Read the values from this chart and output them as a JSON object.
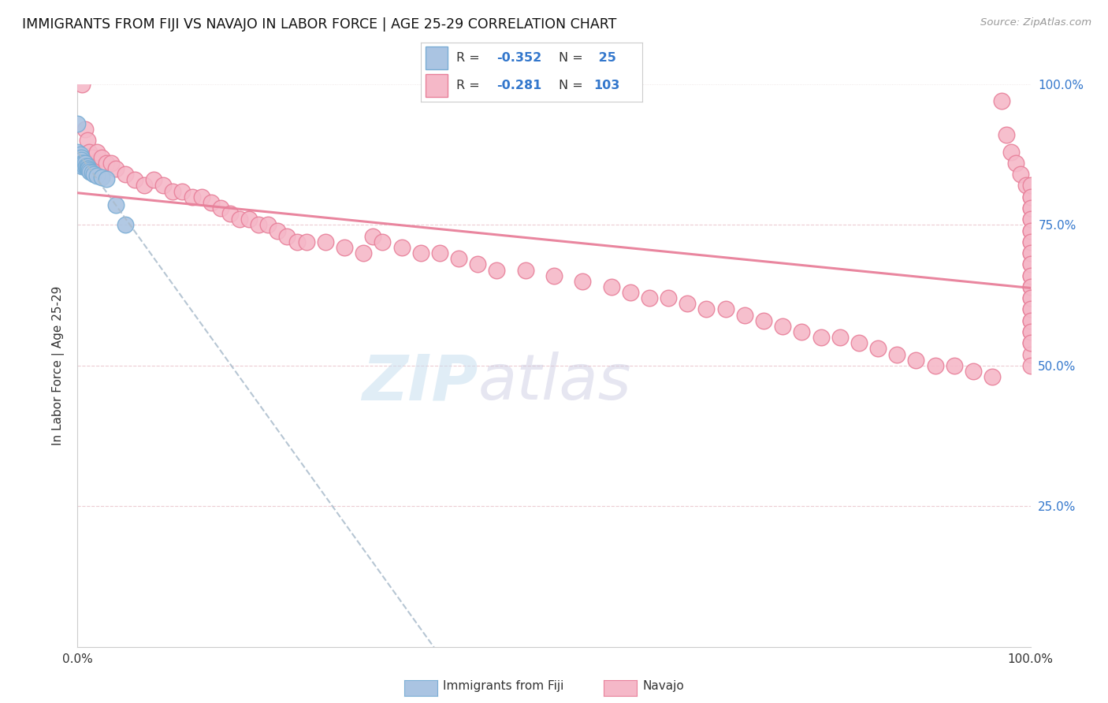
{
  "title": "IMMIGRANTS FROM FIJI VS NAVAJO IN LABOR FORCE | AGE 25-29 CORRELATION CHART",
  "source_text": "Source: ZipAtlas.com",
  "ylabel": "In Labor Force | Age 25-29",
  "watermark_zip": "ZIP",
  "watermark_atlas": "atlas",
  "xlim": [
    0.0,
    1.0
  ],
  "ylim": [
    0.0,
    1.0
  ],
  "fiji_color": "#aac4e2",
  "navajo_color": "#f5b8c8",
  "fiji_edge": "#7aadd4",
  "navajo_edge": "#e8809a",
  "trend_fiji_color": "#aabccc",
  "trend_navajo_color": "#e8809a",
  "fiji_R": -0.352,
  "fiji_N": 25,
  "navajo_R": -0.281,
  "navajo_N": 103,
  "fiji_x": [
    0.0,
    0.0,
    0.0,
    0.002,
    0.003,
    0.004,
    0.004,
    0.005,
    0.005,
    0.006,
    0.007,
    0.008,
    0.009,
    0.01,
    0.01,
    0.011,
    0.012,
    0.013,
    0.015,
    0.017,
    0.02,
    0.025,
    0.03,
    0.04,
    0.05
  ],
  "fiji_y": [
    0.93,
    0.88,
    0.87,
    0.87,
    0.875,
    0.87,
    0.865,
    0.86,
    0.855,
    0.86,
    0.855,
    0.86,
    0.855,
    0.855,
    0.85,
    0.85,
    0.848,
    0.845,
    0.843,
    0.84,
    0.838,
    0.835,
    0.832,
    0.785,
    0.75
  ],
  "navajo_x": [
    0.005,
    0.008,
    0.01,
    0.012,
    0.015,
    0.018,
    0.02,
    0.025,
    0.03,
    0.035,
    0.04,
    0.05,
    0.06,
    0.07,
    0.08,
    0.09,
    0.1,
    0.11,
    0.12,
    0.13,
    0.14,
    0.15,
    0.16,
    0.17,
    0.18,
    0.19,
    0.2,
    0.21,
    0.22,
    0.23,
    0.24,
    0.26,
    0.28,
    0.3,
    0.31,
    0.32,
    0.34,
    0.36,
    0.38,
    0.4,
    0.42,
    0.44,
    0.47,
    0.5,
    0.53,
    0.56,
    0.58,
    0.6,
    0.62,
    0.64,
    0.66,
    0.68,
    0.7,
    0.72,
    0.74,
    0.76,
    0.78,
    0.8,
    0.82,
    0.84,
    0.86,
    0.88,
    0.9,
    0.92,
    0.94,
    0.96,
    0.97,
    0.975,
    0.98,
    0.985,
    0.99,
    0.995,
    1.0,
    1.0,
    1.0,
    1.0,
    1.0,
    1.0,
    1.0,
    1.0,
    1.0,
    1.0,
    1.0,
    1.0,
    1.0,
    1.0,
    1.0,
    1.0,
    1.0,
    1.0,
    1.0,
    1.0,
    1.0,
    1.0,
    1.0,
    1.0,
    1.0,
    1.0,
    1.0,
    1.0,
    1.0,
    1.0,
    1.0
  ],
  "navajo_y": [
    1.0,
    0.92,
    0.9,
    0.88,
    0.87,
    0.86,
    0.88,
    0.87,
    0.86,
    0.86,
    0.85,
    0.84,
    0.83,
    0.82,
    0.83,
    0.82,
    0.81,
    0.81,
    0.8,
    0.8,
    0.79,
    0.78,
    0.77,
    0.76,
    0.76,
    0.75,
    0.75,
    0.74,
    0.73,
    0.72,
    0.72,
    0.72,
    0.71,
    0.7,
    0.73,
    0.72,
    0.71,
    0.7,
    0.7,
    0.69,
    0.68,
    0.67,
    0.67,
    0.66,
    0.65,
    0.64,
    0.63,
    0.62,
    0.62,
    0.61,
    0.6,
    0.6,
    0.59,
    0.58,
    0.57,
    0.56,
    0.55,
    0.55,
    0.54,
    0.53,
    0.52,
    0.51,
    0.5,
    0.5,
    0.49,
    0.48,
    0.97,
    0.91,
    0.88,
    0.86,
    0.84,
    0.82,
    0.8,
    0.78,
    0.76,
    0.74,
    0.72,
    0.7,
    0.68,
    0.66,
    0.64,
    0.62,
    0.6,
    0.58,
    0.56,
    0.54,
    0.52,
    0.5,
    0.82,
    0.8,
    0.78,
    0.76,
    0.74,
    0.72,
    0.7,
    0.68,
    0.66,
    0.64,
    0.62,
    0.6,
    0.58,
    0.56,
    0.54
  ]
}
